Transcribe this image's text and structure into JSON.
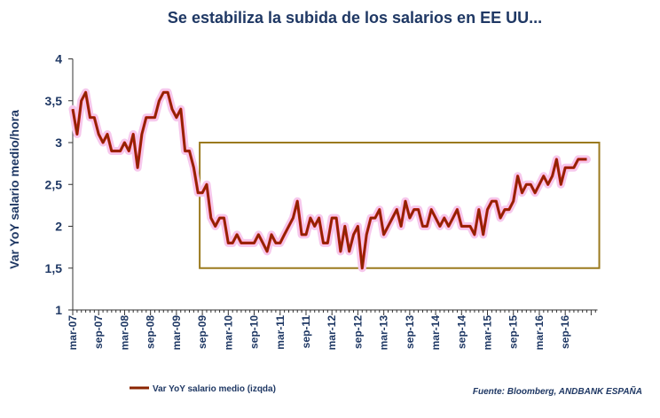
{
  "chart_data": {
    "type": "line",
    "title": "Se estabiliza la subida de los salarios en EE UU...",
    "xlabel": "",
    "ylabel": "Var YoY salario medio/hora",
    "ylim": [
      1,
      4
    ],
    "yticks": [
      1,
      1.5,
      2,
      2.5,
      3,
      3.5,
      4
    ],
    "ytick_labels": [
      "1",
      "1,5",
      "2",
      "2,5",
      "3",
      "3,5",
      "4"
    ],
    "xtick_labels": [
      "mar-07",
      "sep-07",
      "mar-08",
      "sep-08",
      "mar-09",
      "sep-09",
      "mar-10",
      "sep-10",
      "mar-11",
      "sep-11",
      "mar-12",
      "sep-12",
      "mar-13",
      "sep-13",
      "mar-14",
      "sep-14",
      "mar-15",
      "sep-15",
      "mar-16",
      "sep-16"
    ],
    "start_month": "mar-07",
    "months_per_tick": 6,
    "grid": false,
    "legend_position": "bottom-left",
    "series": [
      {
        "name": "Var YoY salario medio (izqda)",
        "color": "#8B2500",
        "highlight_color": "#dd1a1a",
        "values": [
          3.4,
          3.1,
          3.5,
          3.6,
          3.3,
          3.3,
          3.1,
          3.0,
          3.1,
          2.9,
          2.9,
          2.9,
          3.0,
          2.9,
          3.1,
          2.7,
          3.1,
          3.3,
          3.3,
          3.3,
          3.5,
          3.6,
          3.6,
          3.4,
          3.3,
          3.4,
          2.9,
          2.9,
          2.7,
          2.4,
          2.4,
          2.5,
          2.1,
          2.0,
          2.1,
          2.1,
          1.8,
          1.8,
          1.9,
          1.8,
          1.8,
          1.8,
          1.8,
          1.9,
          1.8,
          1.7,
          1.9,
          1.8,
          1.8,
          1.9,
          2.0,
          2.1,
          2.3,
          1.9,
          1.9,
          2.1,
          2.0,
          2.1,
          1.8,
          1.8,
          2.1,
          2.1,
          1.7,
          2.0,
          1.7,
          1.9,
          2.0,
          1.5,
          1.9,
          2.1,
          2.1,
          2.2,
          1.9,
          2.0,
          2.1,
          2.2,
          2.0,
          2.3,
          2.1,
          2.2,
          2.2,
          2.0,
          2.0,
          2.2,
          2.1,
          2.0,
          2.1,
          2.0,
          2.1,
          2.2,
          2.0,
          2.0,
          2.0,
          1.9,
          2.2,
          1.9,
          2.2,
          2.3,
          2.3,
          2.1,
          2.2,
          2.2,
          2.3,
          2.6,
          2.4,
          2.5,
          2.5,
          2.4,
          2.5,
          2.6,
          2.5,
          2.6,
          2.8,
          2.5,
          2.7,
          2.7,
          2.7,
          2.8,
          2.8,
          2.8
        ]
      }
    ],
    "highlight_box": {
      "start": "sep-09",
      "end": "end",
      "ymin": 1.5,
      "ymax": 3.0,
      "color": "#9b7a1e"
    },
    "source": "Fuente: Bloomberg, ANDBANK ESPAÑA"
  }
}
